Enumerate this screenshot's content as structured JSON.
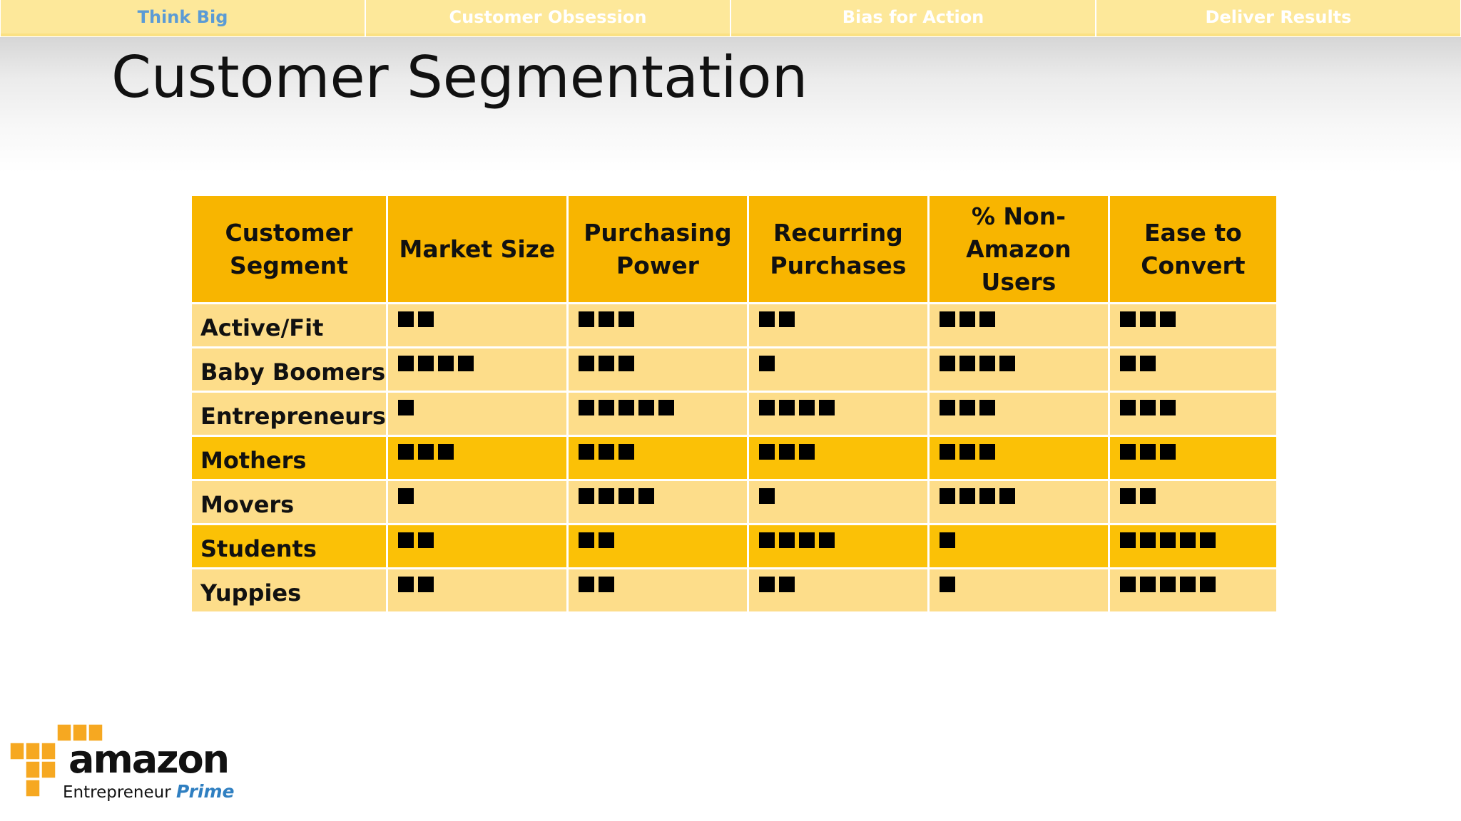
{
  "nav": {
    "tabs": [
      {
        "label": "Think Big",
        "active": true
      },
      {
        "label": "Customer Obsession",
        "active": false
      },
      {
        "label": "Bias for Action",
        "active": false
      },
      {
        "label": "Deliver Results",
        "active": false
      }
    ]
  },
  "slide": {
    "title": "Customer Segmentation"
  },
  "table": {
    "headers": [
      "Customer\nSegment",
      "Market Size",
      "Purchasing\nPower",
      "Recurring\nPurchases",
      "% Non-\nAmazon\nUsers",
      "Ease to\nConvert"
    ],
    "rows": [
      {
        "segment": "Active/Fit",
        "scores": [
          2,
          3,
          2,
          3,
          3
        ],
        "highlight": false
      },
      {
        "segment": "Baby Boomers",
        "scores": [
          4,
          3,
          1,
          4,
          2
        ],
        "highlight": false
      },
      {
        "segment": "Entrepreneurs",
        "scores": [
          1,
          5,
          4,
          3,
          3
        ],
        "highlight": false
      },
      {
        "segment": "Mothers",
        "scores": [
          3,
          3,
          3,
          3,
          3
        ],
        "highlight": true
      },
      {
        "segment": "Movers",
        "scores": [
          1,
          4,
          1,
          4,
          2
        ],
        "highlight": false
      },
      {
        "segment": "Students",
        "scores": [
          2,
          2,
          4,
          1,
          5
        ],
        "highlight": true
      },
      {
        "segment": "Yuppies",
        "scores": [
          2,
          2,
          2,
          1,
          5
        ],
        "highlight": false
      }
    ]
  },
  "colors": {
    "header": "#f8b500",
    "row_light": "#fddd8a",
    "row_highlight": "#fbc106",
    "nav_tab": "#fde89a",
    "nav_active_text": "#5b9bd5"
  },
  "logo": {
    "word": "amazon",
    "sub": "Entrepreneur",
    "sub_accent": "Prime"
  }
}
